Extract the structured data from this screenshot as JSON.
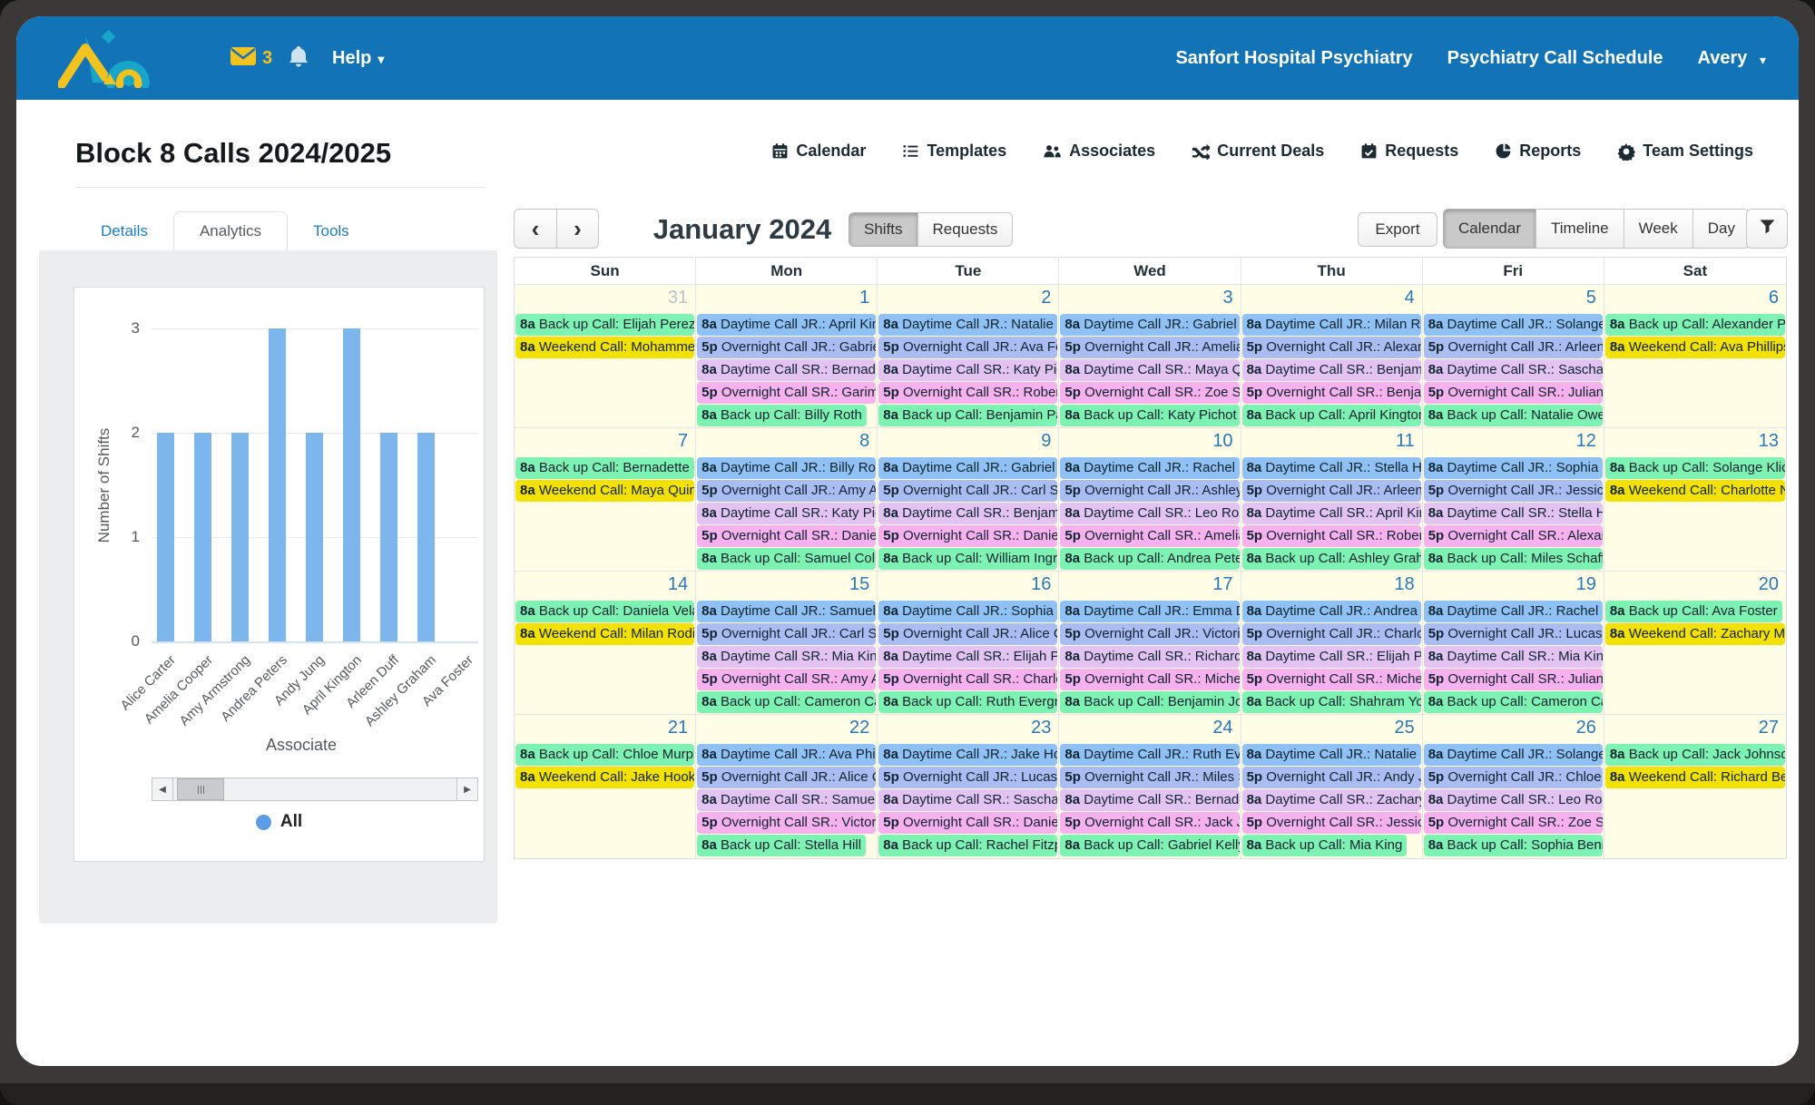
{
  "topbar": {
    "mail_count": "3",
    "help_label": "Help",
    "org": "Sanfort Hospital Psychiatry",
    "schedule": "Psychiatry Call Schedule",
    "user": "Avery"
  },
  "header": {
    "title": "Block 8 Calls 2024/2025",
    "nav": [
      {
        "label": "Calendar",
        "icon": "calendar"
      },
      {
        "label": "Templates",
        "icon": "templates"
      },
      {
        "label": "Associates",
        "icon": "associates"
      },
      {
        "label": "Current Deals",
        "icon": "shuffle"
      },
      {
        "label": "Requests",
        "icon": "requests"
      },
      {
        "label": "Reports",
        "icon": "reports"
      },
      {
        "label": "Team Settings",
        "icon": "gear"
      }
    ]
  },
  "panel": {
    "tabs": [
      "Details",
      "Analytics",
      "Tools"
    ],
    "active_tab": "Analytics"
  },
  "chart_data": {
    "type": "bar",
    "title": "",
    "categories": [
      "Alice Carter",
      "Amelia Cooper",
      "Amy Armstrong",
      "Andrea Peters",
      "Andy Jung",
      "April Kington",
      "Arleen Duff",
      "Ashley Graham",
      "Ava Foster"
    ],
    "values": [
      2,
      2,
      2,
      3,
      2,
      3,
      2,
      2,
      null
    ],
    "xlabel": "Associate",
    "ylabel": "Number of Shifts",
    "ylim": [
      0,
      3
    ],
    "yticks": [
      0,
      1,
      2,
      3
    ],
    "grid": true,
    "bar_color": "#7db6ec",
    "legend": {
      "label": "All",
      "color": "#5c9ce6",
      "position": "bottom"
    }
  },
  "toolbar": {
    "prev": "‹",
    "next": "›",
    "month": "January 2024",
    "modes": [
      "Shifts",
      "Requests"
    ],
    "active_mode": "Shifts",
    "export_label": "Export",
    "views": [
      "Calendar",
      "Timeline",
      "Week",
      "Day"
    ],
    "active_view": "Calendar"
  },
  "event_kinds": {
    "day_jr": {
      "label": "Daytime Call JR.",
      "color": "#8fc1f4"
    },
    "night_jr": {
      "label": "Overnight Call JR.",
      "color": "#aabdf2"
    },
    "day_sr": {
      "label": "Daytime Call SR.",
      "color": "#e3c3f2"
    },
    "night_sr": {
      "label": "Overnight Call SR.",
      "color": "#f6b1ee"
    },
    "backup": {
      "label": "Back up Call",
      "color": "#7ef2b2"
    },
    "weekend": {
      "label": "Weekend Call",
      "color": "#f3e104"
    }
  },
  "calendar": {
    "day_headers": [
      "Sun",
      "Mon",
      "Tue",
      "Wed",
      "Thu",
      "Fri",
      "Sat"
    ],
    "weeks": [
      [
        {
          "date": "31",
          "muted": true,
          "events": [
            {
              "t": "8a",
              "k": "backup",
              "n": "Elijah Perez"
            },
            {
              "t": "8a",
              "k": "weekend",
              "n": "Mohammed"
            }
          ]
        },
        {
          "date": "1",
          "events": [
            {
              "t": "8a",
              "k": "day_jr",
              "n": "April Kington"
            },
            {
              "t": "5p",
              "k": "night_jr",
              "n": "Gabriel"
            },
            {
              "t": "8a",
              "k": "day_sr",
              "n": "Bernadette"
            },
            {
              "t": "5p",
              "k": "night_sr",
              "n": "Garima"
            },
            {
              "t": "8a",
              "k": "backup",
              "n": "Billy Roth"
            }
          ]
        },
        {
          "date": "2",
          "events": [
            {
              "t": "8a",
              "k": "day_jr",
              "n": "Natalie Cruz"
            },
            {
              "t": "5p",
              "k": "night_jr",
              "n": "Ava Foster"
            },
            {
              "t": "8a",
              "k": "day_sr",
              "n": "Katy Pichot"
            },
            {
              "t": "5p",
              "k": "night_sr",
              "n": "Robert"
            },
            {
              "t": "8a",
              "k": "backup",
              "n": "Benjamin Park"
            }
          ]
        },
        {
          "date": "3",
          "events": [
            {
              "t": "8a",
              "k": "day_jr",
              "n": "Gabriel Bell"
            },
            {
              "t": "5p",
              "k": "night_jr",
              "n": "Amelia"
            },
            {
              "t": "8a",
              "k": "day_sr",
              "n": "Maya Quinn"
            },
            {
              "t": "5p",
              "k": "night_sr",
              "n": "Zoe Scott"
            },
            {
              "t": "8a",
              "k": "backup",
              "n": "Katy Pichot"
            }
          ]
        },
        {
          "date": "4",
          "events": [
            {
              "t": "8a",
              "k": "day_jr",
              "n": "Milan Rodin"
            },
            {
              "t": "5p",
              "k": "night_jr",
              "n": "Alexander"
            },
            {
              "t": "8a",
              "k": "day_sr",
              "n": "Benjamin"
            },
            {
              "t": "5p",
              "k": "night_sr",
              "n": "Benjamin"
            },
            {
              "t": "8a",
              "k": "backup",
              "n": "April Kington"
            }
          ]
        },
        {
          "date": "5",
          "events": [
            {
              "t": "8a",
              "k": "day_jr",
              "n": "Solange"
            },
            {
              "t": "5p",
              "k": "night_jr",
              "n": "Arleen"
            },
            {
              "t": "8a",
              "k": "day_sr",
              "n": "Sascha N"
            },
            {
              "t": "5p",
              "k": "night_sr",
              "n": "Julian"
            },
            {
              "t": "8a",
              "k": "backup",
              "n": "Natalie Owens"
            }
          ]
        },
        {
          "date": "6",
          "events": [
            {
              "t": "8a",
              "k": "backup",
              "n": "Alexander Park"
            },
            {
              "t": "8a",
              "k": "weekend",
              "n": "Ava Phillips"
            }
          ]
        }
      ],
      [
        {
          "date": "7",
          "events": [
            {
              "t": "8a",
              "k": "backup",
              "n": "Bernadette Cho"
            },
            {
              "t": "8a",
              "k": "weekend",
              "n": "Maya Quinn"
            }
          ]
        },
        {
          "date": "8",
          "events": [
            {
              "t": "8a",
              "k": "day_jr",
              "n": "Billy Roth"
            },
            {
              "t": "5p",
              "k": "night_jr",
              "n": "Amy Armstrong"
            },
            {
              "t": "8a",
              "k": "day_sr",
              "n": "Katy Pichot"
            },
            {
              "t": "5p",
              "k": "night_sr",
              "n": "Daniel"
            },
            {
              "t": "8a",
              "k": "backup",
              "n": "Samuel Collins"
            }
          ]
        },
        {
          "date": "9",
          "events": [
            {
              "t": "8a",
              "k": "day_jr",
              "n": "Gabriel Bell"
            },
            {
              "t": "5p",
              "k": "night_jr",
              "n": "Carl Stone"
            },
            {
              "t": "8a",
              "k": "day_sr",
              "n": "Benjamin"
            },
            {
              "t": "5p",
              "k": "night_sr",
              "n": "Daniel"
            },
            {
              "t": "8a",
              "k": "backup",
              "n": "William Ingram"
            }
          ]
        },
        {
          "date": "10",
          "events": [
            {
              "t": "8a",
              "k": "day_jr",
              "n": "Rachel F"
            },
            {
              "t": "5p",
              "k": "night_jr",
              "n": "Ashley"
            },
            {
              "t": "8a",
              "k": "day_sr",
              "n": "Leo Ross"
            },
            {
              "t": "5p",
              "k": "night_sr",
              "n": "Amelia"
            },
            {
              "t": "8a",
              "k": "backup",
              "n": "Andrea Peters"
            }
          ]
        },
        {
          "date": "11",
          "events": [
            {
              "t": "8a",
              "k": "day_jr",
              "n": "Stella Hill"
            },
            {
              "t": "5p",
              "k": "night_jr",
              "n": "Arleen"
            },
            {
              "t": "8a",
              "k": "day_sr",
              "n": "April Kington"
            },
            {
              "t": "5p",
              "k": "night_sr",
              "n": "Robert"
            },
            {
              "t": "8a",
              "k": "backup",
              "n": "Ashley Graham"
            }
          ]
        },
        {
          "date": "12",
          "events": [
            {
              "t": "8a",
              "k": "day_jr",
              "n": "Sophia B"
            },
            {
              "t": "5p",
              "k": "night_jr",
              "n": "Jessica"
            },
            {
              "t": "8a",
              "k": "day_sr",
              "n": "Stella Hill"
            },
            {
              "t": "5p",
              "k": "night_sr",
              "n": "Alexander"
            },
            {
              "t": "8a",
              "k": "backup",
              "n": "Miles Schaffer"
            }
          ]
        },
        {
          "date": "13",
          "events": [
            {
              "t": "8a",
              "k": "backup",
              "n": "Solange Klicken"
            },
            {
              "t": "8a",
              "k": "weekend",
              "n": "Charlotte N"
            }
          ]
        }
      ],
      [
        {
          "date": "14",
          "events": [
            {
              "t": "8a",
              "k": "backup",
              "n": "Daniela Velasquez"
            },
            {
              "t": "8a",
              "k": "weekend",
              "n": "Milan Rodin"
            }
          ]
        },
        {
          "date": "15",
          "events": [
            {
              "t": "8a",
              "k": "day_jr",
              "n": "Samuel Collins"
            },
            {
              "t": "5p",
              "k": "night_jr",
              "n": "Carl Stone"
            },
            {
              "t": "8a",
              "k": "day_sr",
              "n": "Mia King"
            },
            {
              "t": "5p",
              "k": "night_sr",
              "n": "Amy Armstrong"
            },
            {
              "t": "8a",
              "k": "backup",
              "n": "Cameron Carter"
            }
          ]
        },
        {
          "date": "16",
          "events": [
            {
              "t": "8a",
              "k": "day_jr",
              "n": "Sophia B"
            },
            {
              "t": "5p",
              "k": "night_jr",
              "n": "Alice Carter"
            },
            {
              "t": "8a",
              "k": "day_sr",
              "n": "Elijah Perez"
            },
            {
              "t": "5p",
              "k": "night_sr",
              "n": "Charlotte"
            },
            {
              "t": "8a",
              "k": "backup",
              "n": "Ruth Evergreen"
            }
          ]
        },
        {
          "date": "17",
          "events": [
            {
              "t": "8a",
              "k": "day_jr",
              "n": "Emma D"
            },
            {
              "t": "5p",
              "k": "night_jr",
              "n": "Victoria"
            },
            {
              "t": "8a",
              "k": "day_sr",
              "n": "Richard"
            },
            {
              "t": "5p",
              "k": "night_sr",
              "n": "Michelle"
            },
            {
              "t": "8a",
              "k": "backup",
              "n": "Benjamin Jolson"
            }
          ]
        },
        {
          "date": "18",
          "events": [
            {
              "t": "8a",
              "k": "day_jr",
              "n": "Andrea Peters"
            },
            {
              "t": "5p",
              "k": "night_jr",
              "n": "Charlotte"
            },
            {
              "t": "8a",
              "k": "day_sr",
              "n": "Elijah Perez"
            },
            {
              "t": "5p",
              "k": "night_sr",
              "n": "Michelle"
            },
            {
              "t": "8a",
              "k": "backup",
              "n": "Shahram Young"
            }
          ]
        },
        {
          "date": "19",
          "events": [
            {
              "t": "8a",
              "k": "day_jr",
              "n": "Rachel F"
            },
            {
              "t": "5p",
              "k": "night_jr",
              "n": "Lucas N"
            },
            {
              "t": "8a",
              "k": "day_sr",
              "n": "Mia King"
            },
            {
              "t": "5p",
              "k": "night_sr",
              "n": "Julian"
            },
            {
              "t": "8a",
              "k": "backup",
              "n": "Cameron Carter"
            }
          ]
        },
        {
          "date": "20",
          "events": [
            {
              "t": "8a",
              "k": "backup",
              "n": "Ava Foster"
            },
            {
              "t": "8a",
              "k": "weekend",
              "n": "Zachary Moore"
            }
          ]
        }
      ],
      [
        {
          "date": "21",
          "events": [
            {
              "t": "8a",
              "k": "backup",
              "n": "Chloe Murphy"
            },
            {
              "t": "8a",
              "k": "weekend",
              "n": "Jake Hook"
            }
          ]
        },
        {
          "date": "22",
          "events": [
            {
              "t": "8a",
              "k": "day_jr",
              "n": "Ava Phillips"
            },
            {
              "t": "5p",
              "k": "night_jr",
              "n": "Alice Carter"
            },
            {
              "t": "8a",
              "k": "day_sr",
              "n": "Samuel Collins"
            },
            {
              "t": "5p",
              "k": "night_sr",
              "n": "Victoria"
            },
            {
              "t": "8a",
              "k": "backup",
              "n": "Stella Hill"
            }
          ]
        },
        {
          "date": "23",
          "events": [
            {
              "t": "8a",
              "k": "day_jr",
              "n": "Jake Hook"
            },
            {
              "t": "5p",
              "k": "night_jr",
              "n": "Lucas N"
            },
            {
              "t": "8a",
              "k": "day_sr",
              "n": "Sascha N"
            },
            {
              "t": "5p",
              "k": "night_sr",
              "n": "Daniel"
            },
            {
              "t": "8a",
              "k": "backup",
              "n": "Rachel Fitzpatrick"
            }
          ]
        },
        {
          "date": "24",
          "events": [
            {
              "t": "8a",
              "k": "day_jr",
              "n": "Ruth Evergreen"
            },
            {
              "t": "5p",
              "k": "night_jr",
              "n": "Miles Schaffer"
            },
            {
              "t": "8a",
              "k": "day_sr",
              "n": "Bernadette"
            },
            {
              "t": "5p",
              "k": "night_sr",
              "n": "Jack Johnson"
            },
            {
              "t": "8a",
              "k": "backup",
              "n": "Gabriel Kelly"
            }
          ]
        },
        {
          "date": "25",
          "events": [
            {
              "t": "8a",
              "k": "day_jr",
              "n": "Natalie Cruz"
            },
            {
              "t": "5p",
              "k": "night_jr",
              "n": "Andy Jung"
            },
            {
              "t": "8a",
              "k": "day_sr",
              "n": "Zachary"
            },
            {
              "t": "5p",
              "k": "night_sr",
              "n": "Jessica"
            },
            {
              "t": "8a",
              "k": "backup",
              "n": "Mia King"
            }
          ]
        },
        {
          "date": "26",
          "events": [
            {
              "t": "8a",
              "k": "day_jr",
              "n": "Solange"
            },
            {
              "t": "5p",
              "k": "night_jr",
              "n": "Chloe Murphy"
            },
            {
              "t": "8a",
              "k": "day_sr",
              "n": "Leo Ross"
            },
            {
              "t": "5p",
              "k": "night_sr",
              "n": "Zoe Scott"
            },
            {
              "t": "8a",
              "k": "backup",
              "n": "Sophia Bennett"
            }
          ]
        },
        {
          "date": "27",
          "events": [
            {
              "t": "8a",
              "k": "backup",
              "n": "Jack Johnson"
            },
            {
              "t": "8a",
              "k": "weekend",
              "n": "Richard Bell"
            }
          ]
        }
      ]
    ]
  },
  "colors": {
    "topbar_blue": "#1373b7",
    "mail_yellow": "#f2c21f",
    "date_link_blue": "#2779b7",
    "cell_bg": "#fffde6",
    "bar_fill": "#7db6ec"
  }
}
